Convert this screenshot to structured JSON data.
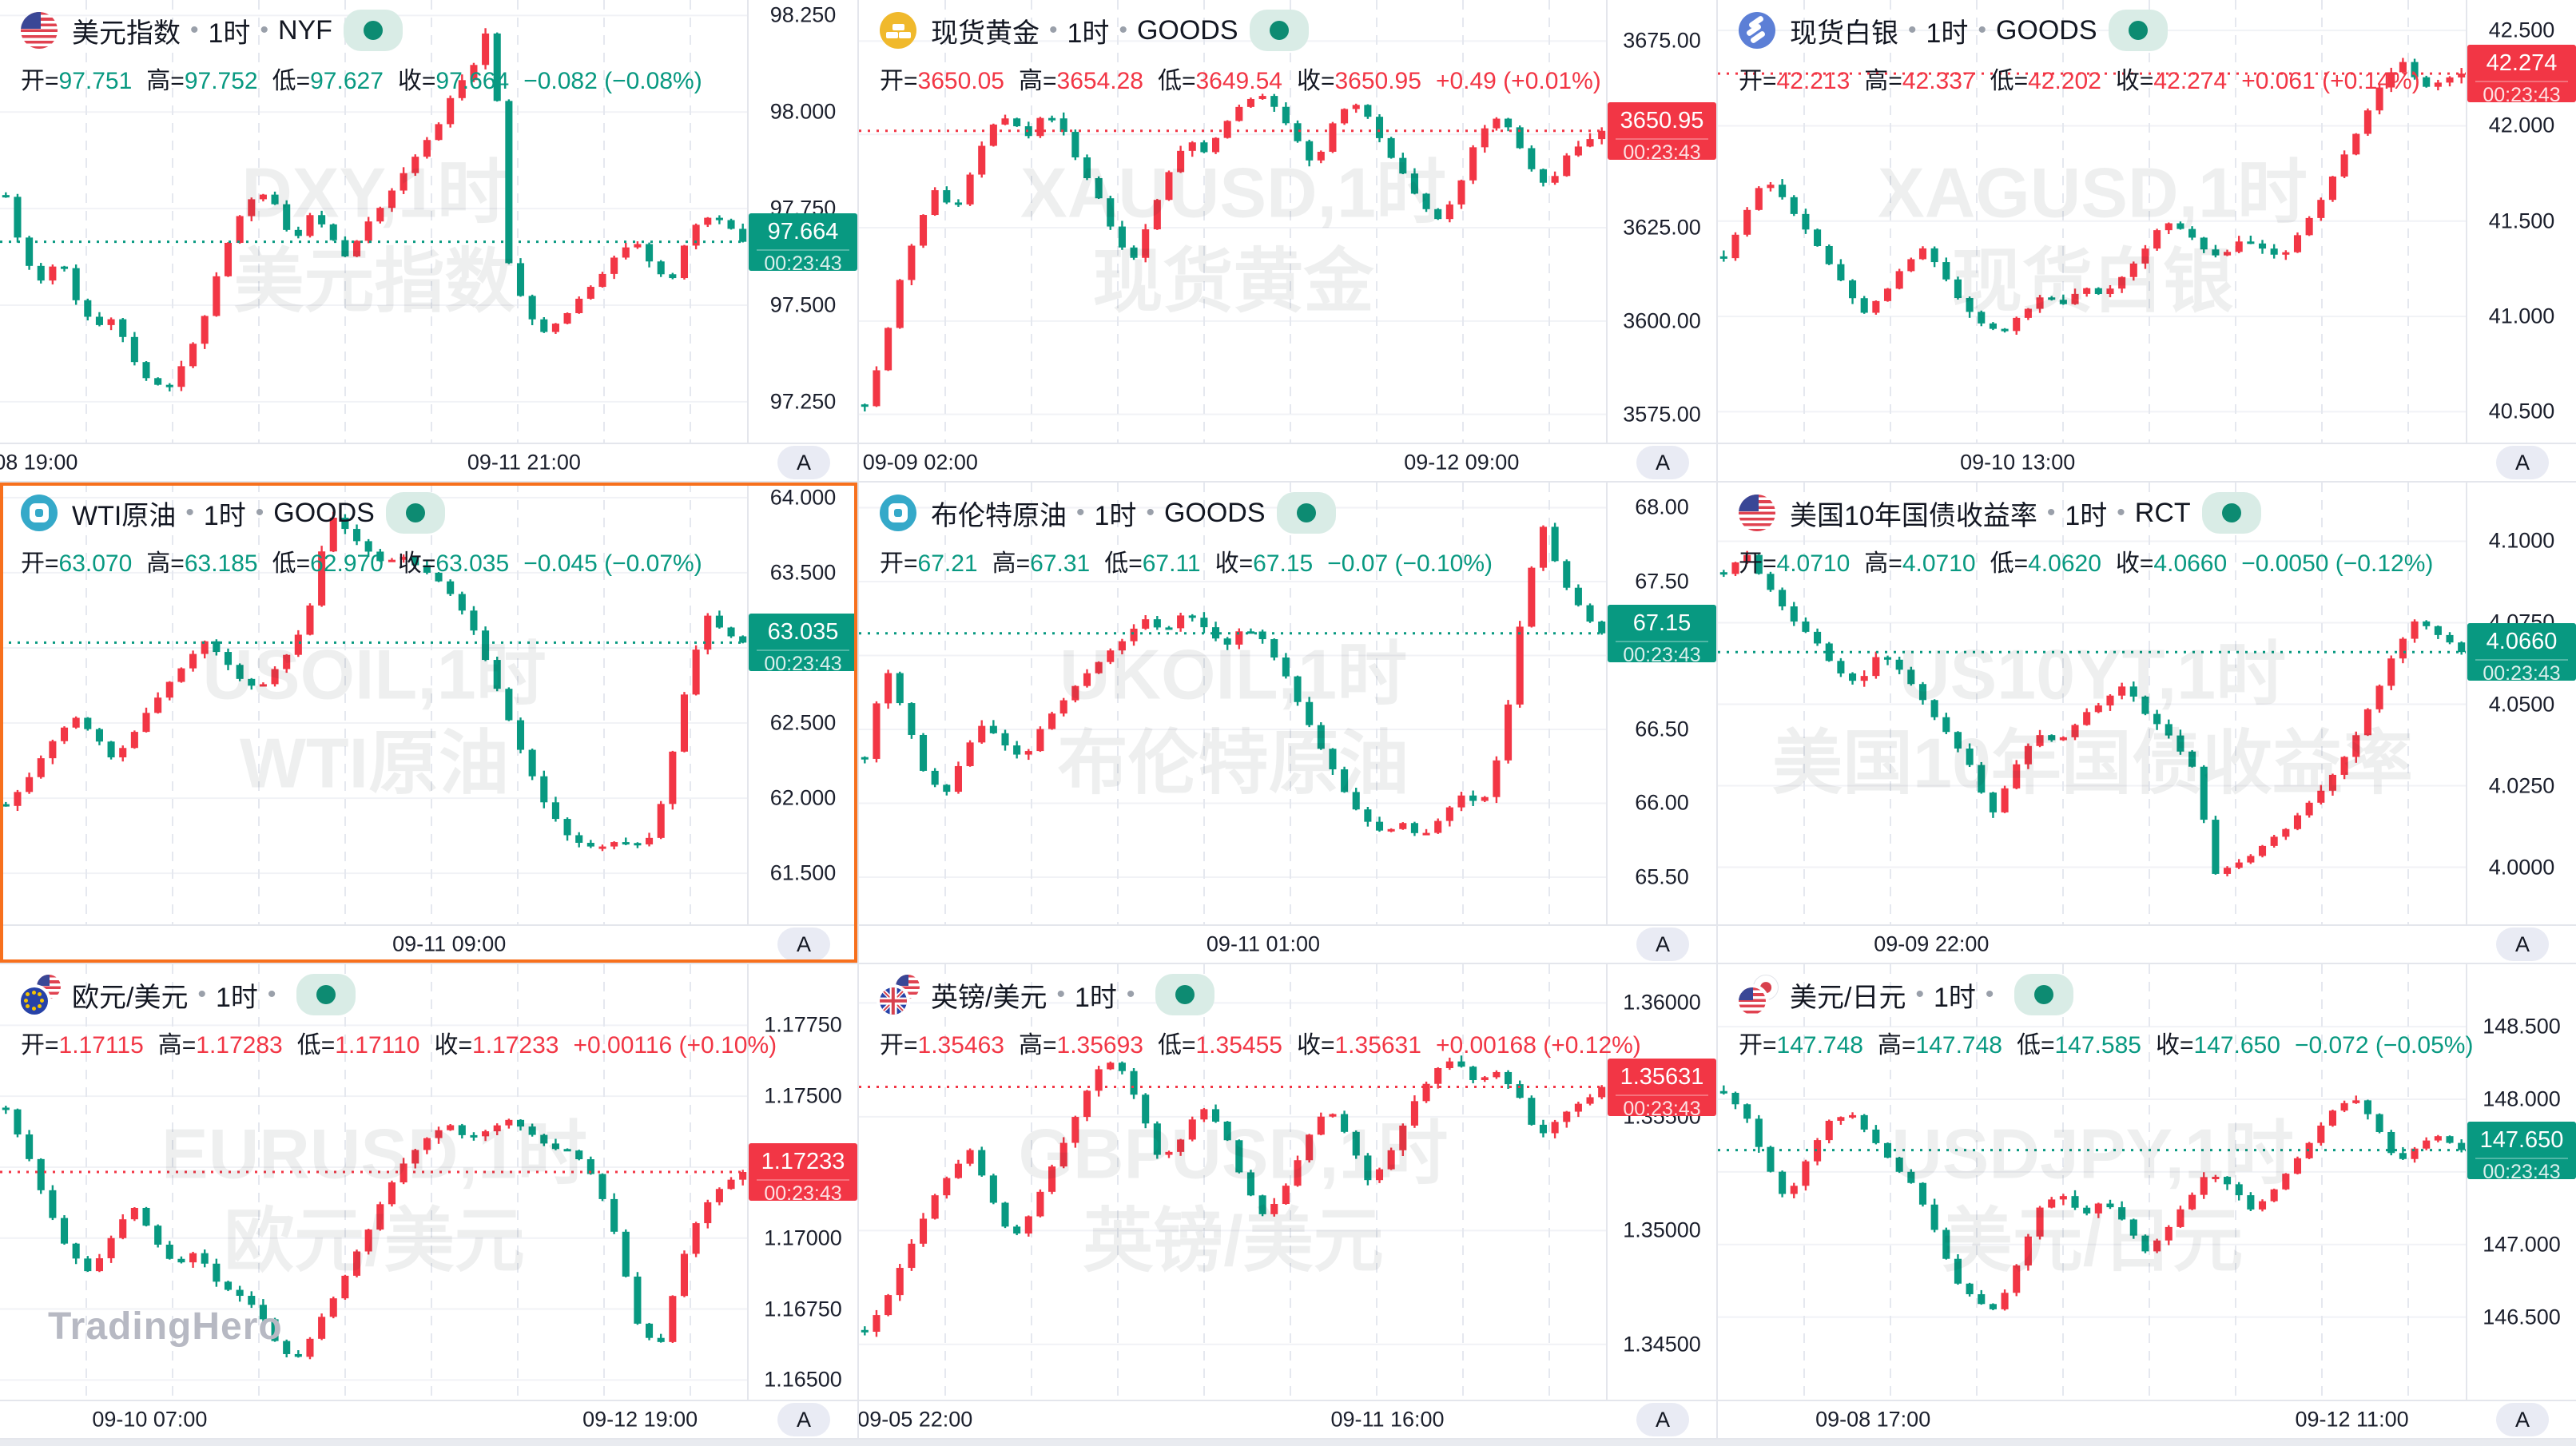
{
  "app": {
    "logo_watermark": "TradingHero"
  },
  "labels": {
    "open": "开=",
    "high": "高=",
    "low": "低=",
    "close": "收=",
    "auto_scale": "A"
  },
  "colors": {
    "up": "#f23645",
    "down": "#089981",
    "selection": "#f7701d",
    "grid": "#e5e8ef",
    "axis_text": "#131722"
  },
  "chart_data": {
    "type": "candlestick-grid",
    "grid": [
      3,
      3
    ],
    "charts": [
      {
        "id": "usd-index",
        "icon": "us-flag",
        "title": "美元指数",
        "interval": "1时",
        "exchange": "NYF",
        "ohlc": {
          "open": "97.751",
          "high": "97.752",
          "low": "97.627",
          "close": "97.664",
          "change": "−0.082 (−0.08%)",
          "direction": "down"
        },
        "price_label": {
          "value": "97.664",
          "time": "00:23:43",
          "direction": "down"
        },
        "price_line": 97.664,
        "watermark": [
          "DXY,1时",
          "美元指数"
        ],
        "ylim": [
          97.14,
          98.29
        ],
        "y_ticks": [
          {
            "v": 98.25,
            "label": "98.250"
          },
          {
            "v": 98.0,
            "label": "98.000"
          },
          {
            "v": 97.75,
            "label": "97.750"
          },
          {
            "v": 97.5,
            "label": "97.500"
          },
          {
            "v": 97.25,
            "label": "97.250"
          }
        ],
        "x_labels": [
          {
            "text": "09-08 19:00",
            "pos": 0.027
          },
          {
            "text": "09-11 21:00",
            "pos": 0.7
          }
        ],
        "close_path": [
          97.78,
          97.62,
          97.56,
          97.63,
          97.5,
          97.44,
          97.47,
          97.36,
          97.3,
          97.28,
          97.36,
          97.46,
          97.62,
          97.73,
          97.8,
          97.76,
          97.66,
          97.74,
          97.68,
          97.62,
          97.71,
          97.76,
          97.83,
          97.9,
          97.96,
          98.06,
          98.12,
          98.24,
          97.6,
          97.48,
          97.43,
          97.47,
          97.52,
          97.57,
          97.63,
          97.67,
          97.6,
          97.56,
          97.69,
          97.73,
          97.72,
          97.664
        ],
        "selected": false
      },
      {
        "id": "gold",
        "icon": "gold",
        "title": "现货黄金",
        "interval": "1时",
        "exchange": "GOODS",
        "ohlc": {
          "open": "3650.05",
          "high": "3654.28",
          "low": "3649.54",
          "close": "3650.95",
          "change": "+0.49 (+0.01%)",
          "direction": "up"
        },
        "price_label": {
          "value": "3650.95",
          "time": "00:23:43",
          "direction": "up"
        },
        "price_line": 3650.95,
        "watermark": [
          "XAUUSD,1时",
          "现货黄金"
        ],
        "ylim": [
          3567,
          3686
        ],
        "y_ticks": [
          {
            "v": 3675,
            "label": "3675.00"
          },
          {
            "v": 3650,
            "label": "3650.00"
          },
          {
            "v": 3625,
            "label": "3625.00"
          },
          {
            "v": 3600,
            "label": "3600.00"
          },
          {
            "v": 3575,
            "label": "3575.00"
          }
        ],
        "x_labels": [
          {
            "text": "09-09 02:00",
            "pos": 0.082
          },
          {
            "text": "09-12 09:00",
            "pos": 0.805
          }
        ],
        "close_path": [
          3577,
          3592,
          3612,
          3626,
          3636,
          3629,
          3641,
          3652,
          3655,
          3649,
          3656,
          3651,
          3641,
          3633,
          3621,
          3617,
          3629,
          3641,
          3649,
          3645,
          3653,
          3658,
          3661,
          3656,
          3649,
          3641,
          3653,
          3659,
          3655,
          3646,
          3639,
          3631,
          3627,
          3635,
          3649,
          3655,
          3651,
          3641,
          3636,
          3644,
          3648,
          3650.95
        ],
        "selected": false
      },
      {
        "id": "silver",
        "icon": "silver",
        "title": "现货白银",
        "interval": "1时",
        "exchange": "GOODS",
        "ohlc": {
          "open": "42.213",
          "high": "42.337",
          "low": "42.202",
          "close": "42.274",
          "change": "+0.061 (+0.14%)",
          "direction": "up"
        },
        "price_label": {
          "value": "42.274",
          "time": "00:23:43",
          "direction": "up"
        },
        "price_line": 42.274,
        "watermark": [
          "XAGUSD,1时",
          "现货白银"
        ],
        "ylim": [
          40.33,
          42.66
        ],
        "y_ticks": [
          {
            "v": 42.5,
            "label": "42.500"
          },
          {
            "v": 42.0,
            "label": "42.000"
          },
          {
            "v": 41.5,
            "label": "41.500"
          },
          {
            "v": 41.0,
            "label": "41.000"
          },
          {
            "v": 40.5,
            "label": "40.500"
          }
        ],
        "x_labels": [
          {
            "text": "09-10 13:00",
            "pos": 0.4
          }
        ],
        "close_path": [
          41.3,
          41.52,
          41.72,
          41.62,
          41.47,
          41.32,
          41.17,
          41.02,
          41.12,
          41.26,
          41.36,
          41.22,
          41.06,
          40.96,
          40.92,
          41.02,
          41.12,
          41.06,
          41.16,
          41.11,
          41.21,
          41.34,
          41.5,
          41.46,
          41.36,
          41.31,
          41.41,
          41.36,
          41.31,
          41.46,
          41.62,
          41.82,
          42.02,
          42.22,
          42.34,
          42.2,
          42.24,
          42.274
        ],
        "selected": false
      },
      {
        "id": "wti",
        "icon": "oil",
        "title": "WTI原油",
        "interval": "1时",
        "exchange": "GOODS",
        "ohlc": {
          "open": "63.070",
          "high": "63.185",
          "low": "62.970",
          "close": "63.035",
          "change": "−0.045 (−0.07%)",
          "direction": "down"
        },
        "price_label": {
          "value": "63.035",
          "time": "00:23:43",
          "direction": "down"
        },
        "price_line": 63.035,
        "watermark": [
          "USOIL,1时",
          "WTI原油"
        ],
        "ylim": [
          61.15,
          64.1
        ],
        "y_ticks": [
          {
            "v": 64.0,
            "label": "64.000"
          },
          {
            "v": 63.5,
            "label": "63.500"
          },
          {
            "v": 63.0,
            "label": "63.000"
          },
          {
            "v": 62.5,
            "label": "62.500"
          },
          {
            "v": 62.0,
            "label": "62.000"
          },
          {
            "v": 61.5,
            "label": "61.500"
          }
        ],
        "x_labels": [
          {
            "text": "09-11 09:00",
            "pos": 0.6
          }
        ],
        "close_path": [
          61.95,
          62.08,
          62.28,
          62.45,
          62.55,
          62.4,
          62.26,
          62.42,
          62.6,
          62.76,
          62.9,
          63.05,
          62.95,
          62.8,
          62.72,
          62.86,
          63.02,
          63.3,
          63.9,
          63.78,
          63.66,
          63.56,
          63.62,
          63.52,
          63.46,
          63.32,
          63.12,
          62.82,
          62.52,
          62.22,
          61.96,
          61.78,
          61.7,
          61.66,
          61.72,
          61.68,
          61.74,
          62.25,
          62.85,
          63.22,
          63.1,
          63.035
        ],
        "selected": true
      },
      {
        "id": "brent",
        "icon": "oil",
        "title": "布伦特原油",
        "interval": "1时",
        "exchange": "GOODS",
        "ohlc": {
          "open": "67.21",
          "high": "67.31",
          "low": "67.11",
          "close": "67.15",
          "change": "−0.07 (−0.10%)",
          "direction": "down"
        },
        "price_label": {
          "value": "67.15",
          "time": "00:23:43",
          "direction": "down"
        },
        "price_line": 67.15,
        "watermark": [
          "UKOIL,1时",
          "布伦特原油"
        ],
        "ylim": [
          65.17,
          68.17
        ],
        "y_ticks": [
          {
            "v": 68.0,
            "label": "68.00"
          },
          {
            "v": 67.5,
            "label": "67.50"
          },
          {
            "v": 67.0,
            "label": "67.00"
          },
          {
            "v": 66.5,
            "label": "66.50"
          },
          {
            "v": 66.0,
            "label": "66.00"
          },
          {
            "v": 65.5,
            "label": "65.50"
          }
        ],
        "x_labels": [
          {
            "text": "09-11 01:00",
            "pos": 0.54
          }
        ],
        "close_path": [
          66.3,
          66.95,
          66.6,
          66.2,
          66.05,
          66.35,
          66.55,
          66.4,
          66.3,
          66.55,
          66.7,
          66.85,
          67.0,
          67.1,
          67.25,
          67.15,
          67.3,
          67.2,
          67.05,
          67.2,
          67.1,
          66.9,
          66.6,
          66.35,
          66.1,
          65.9,
          65.8,
          65.86,
          65.76,
          65.92,
          66.05,
          66.0,
          66.4,
          67.3,
          67.9,
          67.5,
          67.3,
          67.15
        ],
        "selected": false
      },
      {
        "id": "us10y",
        "icon": "us-flag",
        "title": "美国10年国债收益率",
        "interval": "1时",
        "exchange": "RCT",
        "ohlc": {
          "open": "4.0710",
          "high": "4.0710",
          "low": "4.0620",
          "close": "4.0660",
          "change": "−0.0050 (−0.12%)",
          "direction": "down"
        },
        "price_label": {
          "value": "4.0660",
          "time": "00:23:43",
          "direction": "down"
        },
        "price_line": 4.066,
        "watermark": [
          "US10YT,1时",
          "美国10年国债收益率"
        ],
        "ylim": [
          3.982,
          4.118
        ],
        "y_ticks": [
          {
            "v": 4.1,
            "label": "4.1000"
          },
          {
            "v": 4.075,
            "label": "4.0750"
          },
          {
            "v": 4.05,
            "label": "4.0500"
          },
          {
            "v": 4.025,
            "label": "4.0250"
          },
          {
            "v": 4.0,
            "label": "4.0000"
          }
        ],
        "x_labels": [
          {
            "text": "09-09 22:00",
            "pos": 0.285
          }
        ],
        "close_path": [
          4.09,
          4.096,
          4.086,
          4.076,
          4.07,
          4.061,
          4.056,
          4.066,
          4.06,
          4.05,
          4.041,
          4.031,
          4.016,
          4.031,
          4.041,
          4.038,
          4.046,
          4.051,
          4.056,
          4.046,
          4.04,
          4.03,
          3.998,
          4.001,
          4.006,
          4.011,
          4.018,
          4.026,
          4.036,
          4.051,
          4.066,
          4.076,
          4.071,
          4.066
        ],
        "selected": false
      },
      {
        "id": "eurusd",
        "icon": "eur-usd-flags",
        "title": "欧元/美元",
        "interval": "1时",
        "exchange": "",
        "ohlc": {
          "open": "1.17115",
          "high": "1.17283",
          "low": "1.17110",
          "close": "1.17233",
          "change": "+0.00116 (+0.10%)",
          "direction": "up"
        },
        "price_label": {
          "value": "1.17233",
          "time": "00:23:43",
          "direction": "up"
        },
        "price_line": 1.17233,
        "watermark": [
          "EURUSD,1时",
          "欧元/美元"
        ],
        "ylim": [
          1.16425,
          1.17965
        ],
        "y_ticks": [
          {
            "v": 1.1775,
            "label": "1.17750"
          },
          {
            "v": 1.175,
            "label": "1.17500"
          },
          {
            "v": 1.1725,
            "label": "1.17250"
          },
          {
            "v": 1.17,
            "label": "1.17000"
          },
          {
            "v": 1.1675,
            "label": "1.16750"
          },
          {
            "v": 1.165,
            "label": "1.16500"
          }
        ],
        "x_labels": [
          {
            "text": "09-10 07:00",
            "pos": 0.2
          },
          {
            "text": "09-12 19:00",
            "pos": 0.855
          }
        ],
        "close_path": [
          1.1745,
          1.173,
          1.171,
          1.1695,
          1.1688,
          1.17,
          1.1712,
          1.17,
          1.169,
          1.1695,
          1.1685,
          1.168,
          1.1675,
          1.166,
          1.1658,
          1.1672,
          1.1685,
          1.17,
          1.1715,
          1.1728,
          1.1735,
          1.174,
          1.1735,
          1.1738,
          1.1742,
          1.1736,
          1.1732,
          1.173,
          1.172,
          1.17,
          1.167,
          1.166,
          1.169,
          1.171,
          1.1718,
          1.17233
        ],
        "selected": false,
        "show_logo": true
      },
      {
        "id": "gbpusd",
        "icon": "gbp-usd-flags",
        "title": "英镑/美元",
        "interval": "1时",
        "exchange": "",
        "ohlc": {
          "open": "1.35463",
          "high": "1.35693",
          "low": "1.35455",
          "close": "1.35631",
          "change": "+0.00168 (+0.12%)",
          "direction": "up"
        },
        "price_label": {
          "value": "1.35631",
          "time": "00:23:43",
          "direction": "up"
        },
        "price_line": 1.35631,
        "watermark": [
          "GBPUSD,1时",
          "英镑/美元"
        ],
        "ylim": [
          1.3425,
          1.3617
        ],
        "y_ticks": [
          {
            "v": 1.36,
            "label": "1.36000"
          },
          {
            "v": 1.355,
            "label": "1.35500"
          },
          {
            "v": 1.35,
            "label": "1.35000"
          },
          {
            "v": 1.345,
            "label": "1.34500"
          }
        ],
        "x_labels": [
          {
            "text": "09-05 22:00",
            "pos": 0.075
          },
          {
            "text": "09-11 16:00",
            "pos": 0.706
          }
        ],
        "close_path": [
          1.3455,
          1.347,
          1.349,
          1.351,
          1.3525,
          1.3535,
          1.3515,
          1.3495,
          1.351,
          1.353,
          1.355,
          1.357,
          1.3575,
          1.3555,
          1.353,
          1.354,
          1.3555,
          1.3545,
          1.352,
          1.3505,
          1.352,
          1.354,
          1.3555,
          1.354,
          1.352,
          1.3535,
          1.3555,
          1.357,
          1.3575,
          1.3565,
          1.357,
          1.356,
          1.354,
          1.355,
          1.3556,
          1.35631
        ],
        "selected": false
      },
      {
        "id": "usdjpy",
        "icon": "usd-jpy-flags",
        "title": "美元/日元",
        "interval": "1时",
        "exchange": "",
        "ohlc": {
          "open": "147.748",
          "high": "147.748",
          "low": "147.585",
          "close": "147.650",
          "change": "−0.072 (−0.05%)",
          "direction": "down"
        },
        "price_label": {
          "value": "147.650",
          "time": "00:23:43",
          "direction": "down"
        },
        "price_line": 147.65,
        "watermark": [
          "USDJPY,1时",
          "美元/日元"
        ],
        "ylim": [
          145.92,
          148.93
        ],
        "y_ticks": [
          {
            "v": 148.5,
            "label": "148.500"
          },
          {
            "v": 148.0,
            "label": "148.000"
          },
          {
            "v": 147.5,
            "label": "147.500"
          },
          {
            "v": 147.0,
            "label": "147.000"
          },
          {
            "v": 146.5,
            "label": "146.500"
          }
        ],
        "x_labels": [
          {
            "text": "09-08 17:00",
            "pos": 0.207
          },
          {
            "text": "09-12 11:00",
            "pos": 0.846
          }
        ],
        "close_path": [
          148.05,
          147.9,
          147.55,
          147.3,
          147.6,
          147.85,
          147.9,
          147.75,
          147.55,
          147.4,
          147.1,
          146.75,
          146.6,
          146.55,
          146.9,
          147.25,
          147.35,
          147.2,
          147.3,
          147.15,
          146.95,
          147.1,
          147.3,
          147.5,
          147.4,
          147.25,
          147.35,
          147.55,
          147.75,
          147.95,
          148.0,
          147.8,
          147.55,
          147.7,
          147.75,
          147.65
        ],
        "selected": false
      }
    ]
  }
}
